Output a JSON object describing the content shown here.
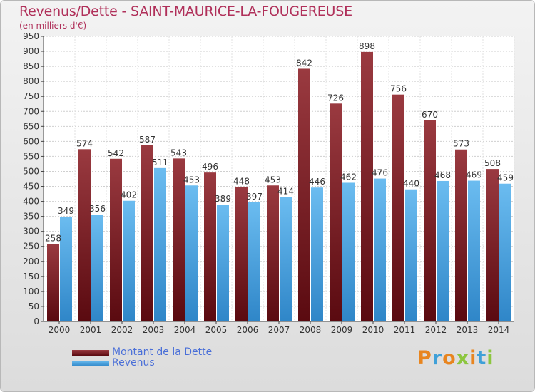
{
  "title": "Revenus/Dette - SAINT-MAURICE-LA-FOUGEREUSE",
  "subtitle": "(en milliers d'€)",
  "logo": {
    "text": "Proxiti"
  },
  "colors": {
    "dette": "#6e0d14",
    "dette_light": "#9a3a40",
    "revenus": "#3f9adc",
    "revenus_light": "#6bbcf0",
    "title": "#b0305a",
    "legend_text": "#4a6fd8"
  },
  "legend": [
    {
      "label": "Montant de la Dette"
    },
    {
      "label": "Revenus"
    }
  ],
  "chart_data": {
    "type": "bar",
    "title": "Revenus/Dette - SAINT-MAURICE-LA-FOUGEREUSE",
    "subtitle": "(en milliers d'€)",
    "categories": [
      "2000",
      "2001",
      "2002",
      "2003",
      "2004",
      "2005",
      "2006",
      "2007",
      "2008",
      "2009",
      "2010",
      "2011",
      "2012",
      "2013",
      "2014"
    ],
    "series": [
      {
        "name": "Montant de la Dette",
        "values": [
          258,
          574,
          542,
          587,
          543,
          496,
          448,
          453,
          842,
          726,
          898,
          756,
          670,
          573,
          508
        ]
      },
      {
        "name": "Revenus",
        "values": [
          349,
          356,
          402,
          511,
          453,
          389,
          397,
          414,
          446,
          462,
          476,
          440,
          468,
          469,
          459
        ]
      }
    ],
    "yticks": [
      0,
      50,
      100,
      150,
      200,
      250,
      300,
      350,
      400,
      450,
      500,
      550,
      600,
      650,
      700,
      750,
      800,
      850,
      900,
      950
    ],
    "ylim": [
      0,
      950
    ],
    "grid": true,
    "legend_position": "bottom-left"
  }
}
